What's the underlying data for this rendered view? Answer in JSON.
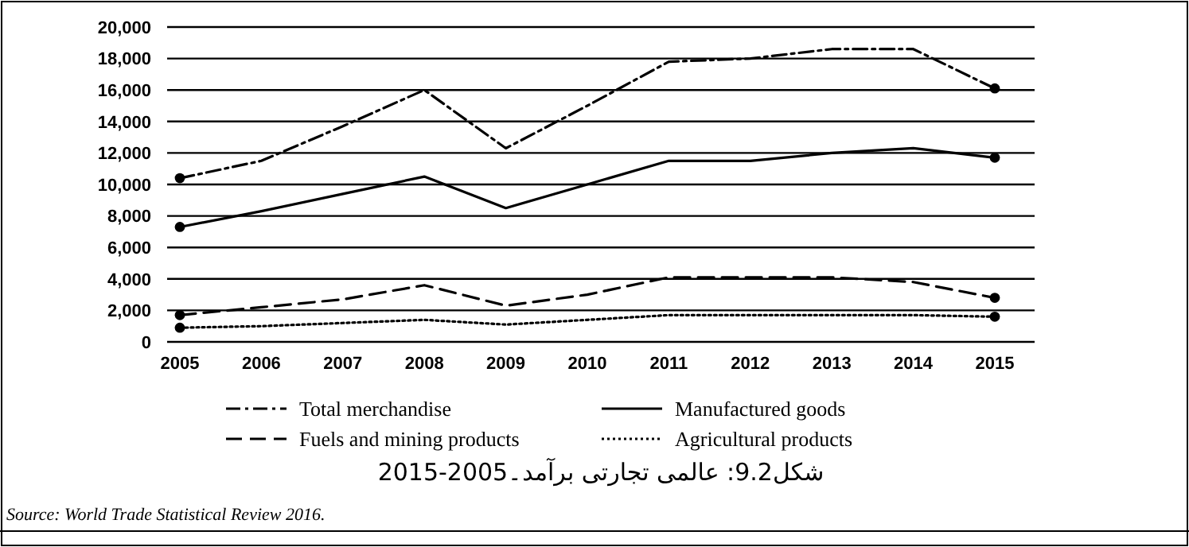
{
  "chart_data": {
    "type": "line",
    "title": "شکل9.2: عالمی تجارتی برآمد۔2005-2015",
    "annotations": [
      "Source: World Trade Statistical Review 2016."
    ],
    "categories": [
      "2005",
      "2006",
      "2007",
      "2008",
      "2009",
      "2010",
      "2011",
      "2012",
      "2013",
      "2014",
      "2015"
    ],
    "ylim": [
      0,
      20000
    ],
    "yticks": [
      {
        "value": 0,
        "label": "0"
      },
      {
        "value": 2000,
        "label": "2,000"
      },
      {
        "value": 4000,
        "label": "4,000"
      },
      {
        "value": 6000,
        "label": "6,000"
      },
      {
        "value": 8000,
        "label": "8,000"
      },
      {
        "value": 10000,
        "label": "10,000"
      },
      {
        "value": 12000,
        "label": "12,000"
      },
      {
        "value": 14000,
        "label": "14,000"
      },
      {
        "value": 16000,
        "label": "16,000"
      },
      {
        "value": 18000,
        "label": "18,000"
      },
      {
        "value": 20000,
        "label": "20,000"
      }
    ],
    "grid": "y",
    "legend": "bottom",
    "series": [
      {
        "name": "Total merchandise",
        "color": "#000000",
        "line_style": "dashdot",
        "values": [
          10400,
          11500,
          13700,
          16000,
          12300,
          15000,
          17800,
          18000,
          18600,
          18600,
          16100
        ]
      },
      {
        "name": "Manufactured goods",
        "color": "#000000",
        "line_style": "solid",
        "values": [
          7300,
          8300,
          9400,
          10500,
          8500,
          10000,
          11500,
          11500,
          12000,
          12300,
          11700
        ]
      },
      {
        "name": "Fuels and mining products",
        "color": "#000000",
        "line_style": "dashed",
        "values": [
          1700,
          2200,
          2700,
          3600,
          2300,
          3000,
          4100,
          4100,
          4100,
          3800,
          2800
        ]
      },
      {
        "name": "Agricultural products",
        "color": "#000000",
        "line_style": "dotted",
        "values": [
          900,
          1000,
          1200,
          1400,
          1100,
          1400,
          1700,
          1700,
          1700,
          1700,
          1600
        ]
      }
    ]
  }
}
